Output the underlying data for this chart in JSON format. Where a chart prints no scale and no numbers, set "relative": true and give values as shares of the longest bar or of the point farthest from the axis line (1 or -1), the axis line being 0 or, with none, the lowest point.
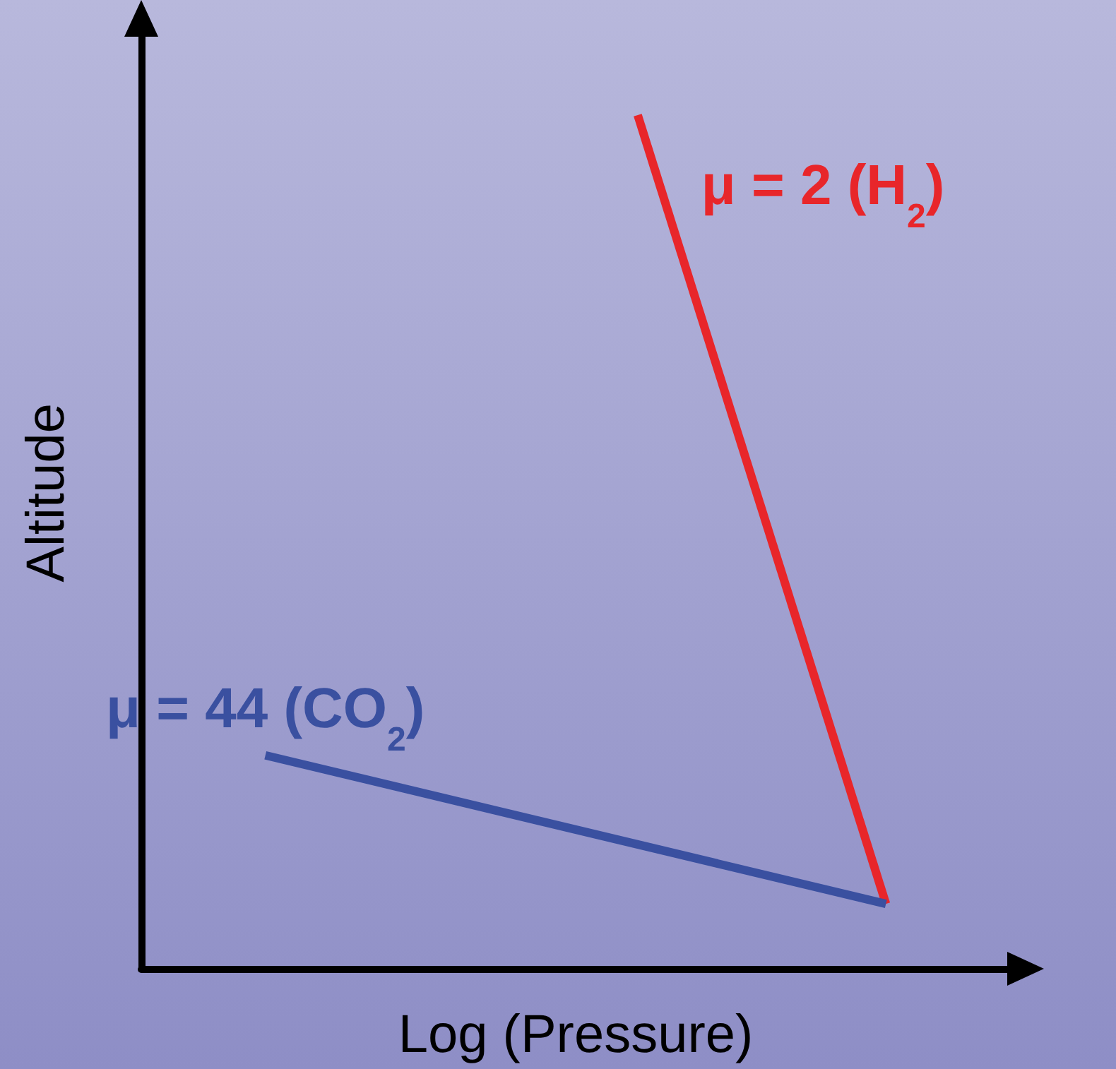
{
  "chart_data": {
    "type": "line",
    "xlabel": "Log (Pressure)",
    "ylabel": "Altitude",
    "relative": true,
    "legend": false,
    "grid": false,
    "marker": "none",
    "categories": [
      null,
      null,
      null,
      null,
      null,
      null,
      null,
      null,
      null,
      null,
      null,
      null,
      null,
      null,
      null
    ],
    "series": [
      {
        "name": "μ = 2 (H$_{2}$)",
        "color": "#e8262a",
        "values": [
          null,
          null,
          null,
          null,
          null,
          null,
          null,
          null,
          1,
          null,
          null,
          null,
          0.076,
          null,
          null
        ]
      },
      {
        "name": "μ = 44 (CO$_{2}$)",
        "color": "#3a50a0",
        "values": [
          null,
          null,
          0.25,
          null,
          null,
          null,
          null,
          null,
          null,
          null,
          null,
          null,
          0.076,
          null,
          null
        ]
      }
    ]
  }
}
